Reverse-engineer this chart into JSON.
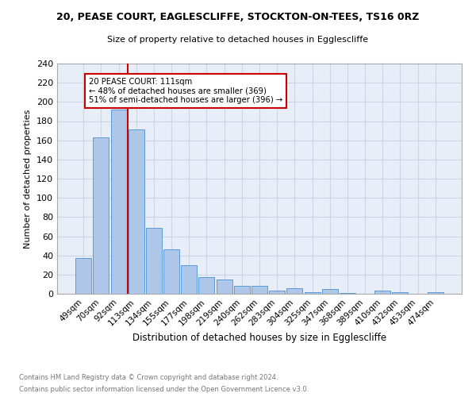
{
  "title1": "20, PEASE COURT, EAGLESCLIFFE, STOCKTON-ON-TEES, TS16 0RZ",
  "title2": "Size of property relative to detached houses in Egglescliffe",
  "xlabel": "Distribution of detached houses by size in Egglescliffe",
  "ylabel": "Number of detached properties",
  "categories": [
    "49sqm",
    "70sqm",
    "92sqm",
    "113sqm",
    "134sqm",
    "155sqm",
    "177sqm",
    "198sqm",
    "219sqm",
    "240sqm",
    "262sqm",
    "283sqm",
    "304sqm",
    "325sqm",
    "347sqm",
    "368sqm",
    "389sqm",
    "410sqm",
    "432sqm",
    "453sqm",
    "474sqm"
  ],
  "values": [
    37,
    163,
    192,
    171,
    69,
    46,
    30,
    17,
    15,
    8,
    8,
    3,
    6,
    2,
    5,
    1,
    0,
    3,
    2,
    0,
    2
  ],
  "bar_color": "#aec6e8",
  "bar_edge_color": "#5b9bd5",
  "vline_color": "#cc0000",
  "annotation_line1": "20 PEASE COURT: 111sqm",
  "annotation_line2": "← 48% of detached houses are smaller (369)",
  "annotation_line3": "51% of semi-detached houses are larger (396) →",
  "annotation_box_color": "#cc0000",
  "footnote1": "Contains HM Land Registry data © Crown copyright and database right 2024.",
  "footnote2": "Contains public sector information licensed under the Open Government Licence v3.0.",
  "ylim": [
    0,
    240
  ],
  "yticks": [
    0,
    20,
    40,
    60,
    80,
    100,
    120,
    140,
    160,
    180,
    200,
    220,
    240
  ],
  "grid_color": "#cdd5e5",
  "background_color": "#e8eef8"
}
